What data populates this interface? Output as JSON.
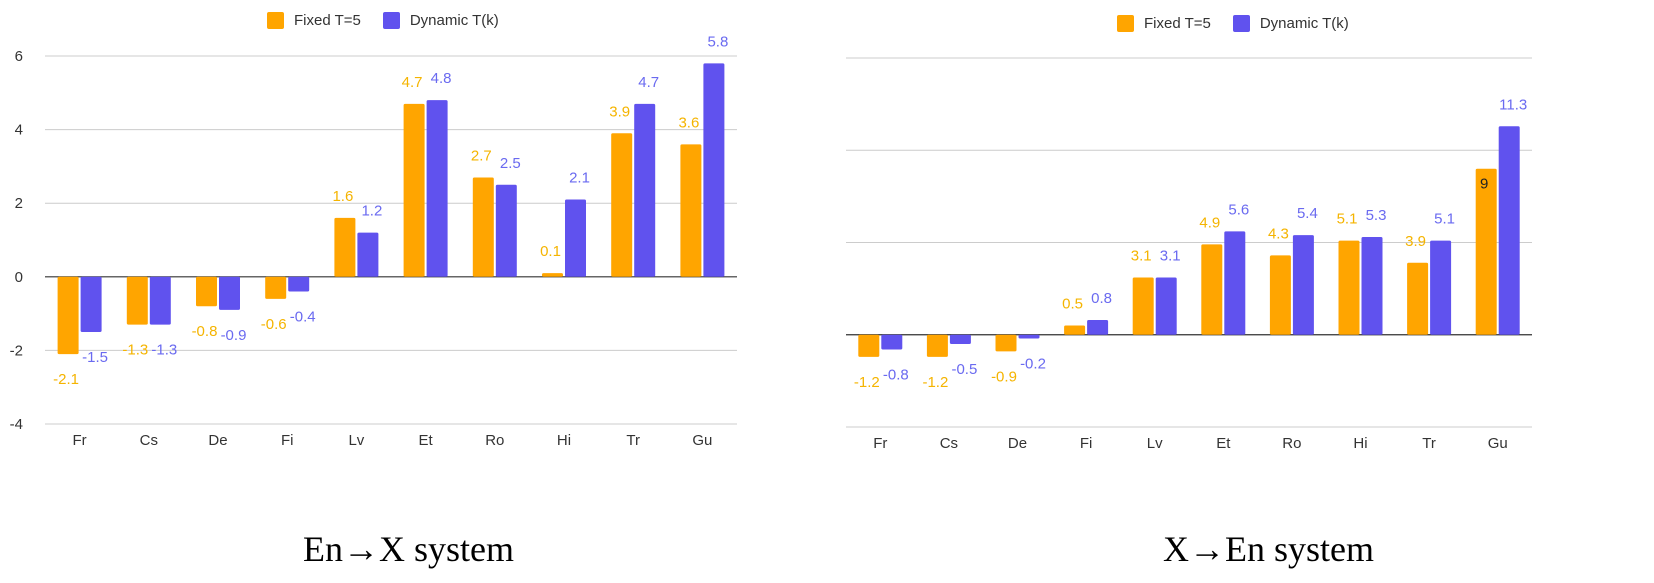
{
  "colors": {
    "fixed": "#FFA500",
    "dynamic": "#6052EE",
    "fixed_label": "#F5B400",
    "dynamic_label": "#6A6AF0",
    "grid": "#cccccc",
    "axis": "#333333"
  },
  "legend": {
    "fixed": "Fixed T=5",
    "dynamic": "Dynamic T(k)"
  },
  "captions": {
    "left": "En→X system",
    "right": "X→En system"
  },
  "chart_data": [
    {
      "type": "bar",
      "categories": [
        "Fr",
        "Cs",
        "De",
        "Fi",
        "Lv",
        "Et",
        "Ro",
        "Hi",
        "Tr",
        "Gu"
      ],
      "series": [
        {
          "name": "Fixed T=5",
          "values": [
            -2.1,
            -1.3,
            -0.8,
            -0.6,
            1.6,
            4.7,
            2.7,
            0.1,
            3.9,
            3.6
          ]
        },
        {
          "name": "Dynamic T(k)",
          "values": [
            -1.5,
            -1.3,
            -0.9,
            -0.4,
            1.2,
            4.8,
            2.5,
            2.1,
            4.7,
            5.8
          ]
        }
      ],
      "ylim": [
        -4,
        6
      ],
      "yticks": [
        -4,
        -2,
        0,
        2,
        4,
        6
      ],
      "grid": true,
      "legend_position": "top-center",
      "caption": "En→X system"
    },
    {
      "type": "bar",
      "categories": [
        "Fr",
        "Cs",
        "De",
        "Fi",
        "Lv",
        "Et",
        "Ro",
        "Hi",
        "Tr",
        "Gu"
      ],
      "series": [
        {
          "name": "Fixed T=5",
          "values": [
            -1.2,
            -1.2,
            -0.9,
            0.5,
            3.1,
            4.9,
            4.3,
            5.1,
            3.9,
            9
          ]
        },
        {
          "name": "Dynamic T(k)",
          "values": [
            -0.8,
            -0.5,
            -0.2,
            0.8,
            3.1,
            5.6,
            5.4,
            5.3,
            5.1,
            11.3
          ]
        }
      ],
      "ylim": [
        -5,
        15
      ],
      "yticks": [
        -5,
        0,
        5,
        10,
        15
      ],
      "grid": true,
      "legend_position": "top-center",
      "caption": "X→En system"
    }
  ]
}
